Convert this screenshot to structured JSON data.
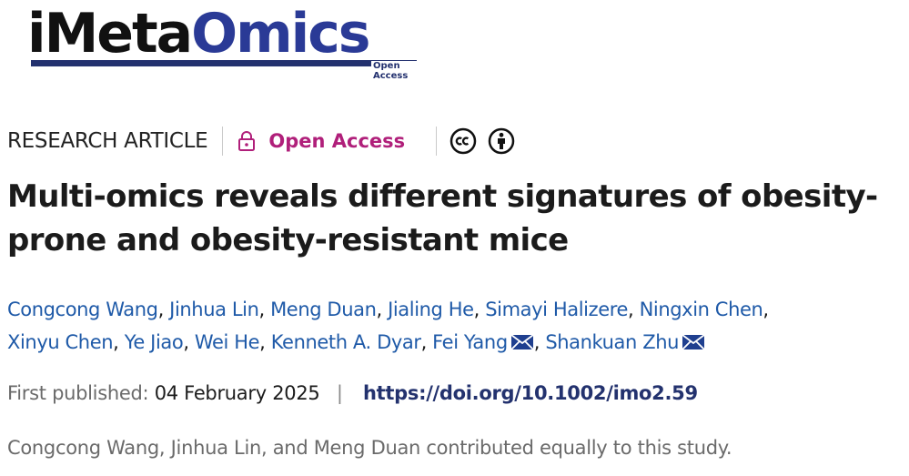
{
  "logo": {
    "part1": "iMeta",
    "part2": "Omics",
    "subtitle": "Open Access"
  },
  "meta": {
    "article_type": "RESEARCH ARTICLE",
    "open_access": "Open Access"
  },
  "title": "Multi-omics reveals different signatures of obesity-prone and obesity-resistant mice",
  "authors": [
    "Congcong Wang",
    "Jinhua Lin",
    "Meng Duan",
    "Jialing He",
    "Simayi Halizere",
    "Ningxin Chen",
    "Xinyu Chen",
    "Ye Jiao",
    "Wei He",
    "Kenneth A. Dyar",
    "Fei Yang",
    "Shankuan Zhu"
  ],
  "publication": {
    "label": "First published:",
    "date": "04 February 2025",
    "doi": "https://doi.org/10.1002/imo2.59"
  },
  "note": "Congcong Wang, Jinhua Lin, and Meng Duan contributed equally to this study."
}
